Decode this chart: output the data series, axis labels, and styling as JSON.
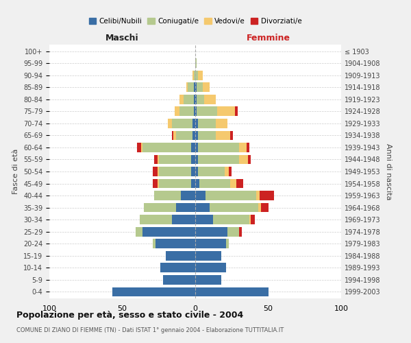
{
  "age_groups": [
    "0-4",
    "5-9",
    "10-14",
    "15-19",
    "20-24",
    "25-29",
    "30-34",
    "35-39",
    "40-44",
    "45-49",
    "50-54",
    "55-59",
    "60-64",
    "65-69",
    "70-74",
    "75-79",
    "80-84",
    "85-89",
    "90-94",
    "95-99",
    "100+"
  ],
  "birth_years": [
    "1999-2003",
    "1994-1998",
    "1989-1993",
    "1984-1988",
    "1979-1983",
    "1974-1978",
    "1969-1973",
    "1964-1968",
    "1959-1963",
    "1954-1958",
    "1949-1953",
    "1944-1948",
    "1939-1943",
    "1934-1938",
    "1929-1933",
    "1924-1928",
    "1919-1923",
    "1914-1918",
    "1909-1913",
    "1904-1908",
    "≤ 1903"
  ],
  "males": {
    "celibi": [
      57,
      22,
      24,
      20,
      27,
      36,
      16,
      13,
      10,
      3,
      3,
      3,
      3,
      2,
      2,
      1,
      1,
      1,
      0,
      0,
      0
    ],
    "coniugati": [
      0,
      0,
      0,
      0,
      2,
      5,
      22,
      22,
      18,
      22,
      22,
      22,
      33,
      11,
      14,
      10,
      7,
      4,
      1,
      0,
      0
    ],
    "vedovi": [
      0,
      0,
      0,
      0,
      0,
      0,
      0,
      0,
      0,
      1,
      1,
      1,
      1,
      2,
      3,
      3,
      3,
      1,
      1,
      0,
      0
    ],
    "divorziati": [
      0,
      0,
      0,
      0,
      0,
      0,
      0,
      0,
      0,
      3,
      3,
      2,
      3,
      1,
      0,
      0,
      0,
      0,
      0,
      0,
      0
    ]
  },
  "females": {
    "nubili": [
      50,
      18,
      21,
      18,
      21,
      22,
      12,
      10,
      7,
      3,
      2,
      2,
      2,
      2,
      2,
      1,
      1,
      1,
      0,
      0,
      0
    ],
    "coniugate": [
      0,
      0,
      0,
      0,
      2,
      8,
      25,
      33,
      35,
      21,
      18,
      28,
      28,
      12,
      12,
      14,
      5,
      4,
      2,
      1,
      0
    ],
    "vedove": [
      0,
      0,
      0,
      0,
      0,
      0,
      1,
      2,
      2,
      4,
      3,
      6,
      5,
      10,
      8,
      12,
      8,
      5,
      3,
      0,
      0
    ],
    "divorziate": [
      0,
      0,
      0,
      0,
      0,
      2,
      3,
      5,
      10,
      5,
      2,
      2,
      2,
      2,
      0,
      2,
      0,
      0,
      0,
      0,
      0
    ]
  },
  "colors": {
    "celibi": "#3a6ea5",
    "coniugati": "#b5c98e",
    "vedovi": "#f5c96e",
    "divorziati": "#cc2222"
  },
  "xlim": 100,
  "title": "Popolazione per età, sesso e stato civile - 2004",
  "subtitle": "COMUNE DI ZIANO DI FIEMME (TN) - Dati ISTAT 1° gennaio 2004 - Elaborazione TUTTITALIA.IT",
  "ylabel_left": "Fasce di età",
  "ylabel_right": "Anni di nascita",
  "xlabel_left": "Maschi",
  "xlabel_right": "Femmine",
  "legend_labels": [
    "Celibi/Nubili",
    "Coniugati/e",
    "Vedovi/e",
    "Divorziati/e"
  ],
  "bg_color": "#f0f0f0",
  "plot_bg": "#ffffff",
  "grid_color": "#cccccc"
}
